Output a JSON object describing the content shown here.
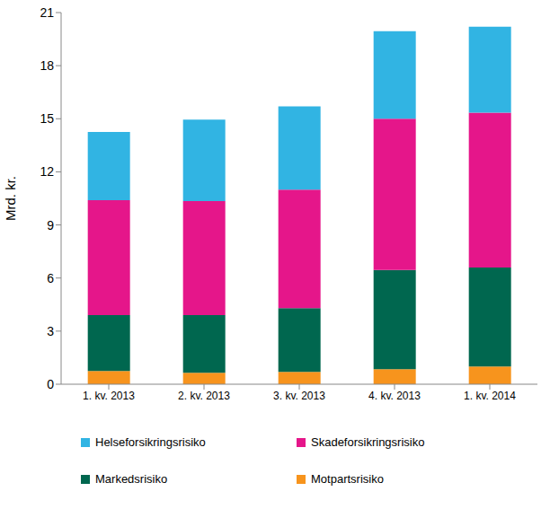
{
  "chart_data": {
    "type": "bar",
    "stacked": true,
    "y_label": "Mrd. kr.",
    "categories": [
      "1. kv. 2013",
      "2. kv. 2013",
      "3. kv. 2013",
      "4. kv. 2013",
      "1. kv. 2014"
    ],
    "series": [
      {
        "name": "Helseforsikringsrisiko",
        "color": "#31b4e3",
        "values": [
          3.85,
          4.6,
          4.7,
          4.95,
          4.85
        ]
      },
      {
        "name": "Skadeforsikringsrisiko",
        "color": "#e5168a",
        "values": [
          6.5,
          6.45,
          6.7,
          8.55,
          8.75
        ]
      },
      {
        "name": "Markedsrisiko",
        "color": "#00674f",
        "values": [
          3.15,
          3.25,
          3.6,
          5.6,
          5.6
        ]
      },
      {
        "name": "Motpartsrisiko",
        "color": "#f7941d",
        "values": [
          0.75,
          0.65,
          0.7,
          0.85,
          1.0
        ]
      }
    ],
    "ylim": [
      0,
      21
    ],
    "yticks": [
      0,
      3,
      6,
      9,
      12,
      15,
      18,
      21
    ],
    "grid": false,
    "legend": "bottom"
  }
}
